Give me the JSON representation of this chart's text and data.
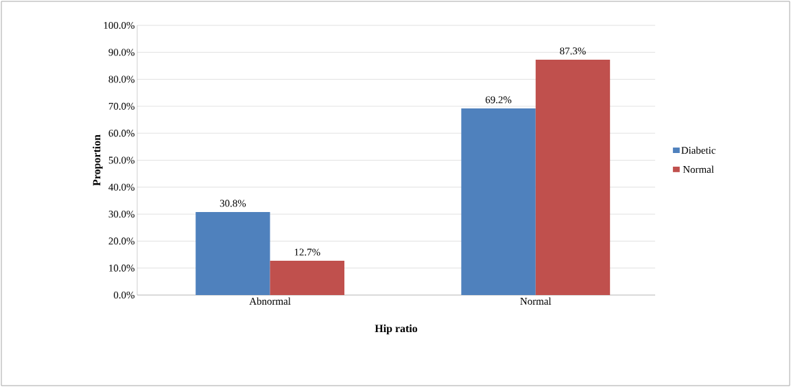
{
  "chart_data": {
    "type": "bar",
    "xlabel": "Hip ratio",
    "ylabel": "Proportion",
    "categories": [
      "Abnormal",
      "Normal"
    ],
    "series": [
      {
        "name": "Diabetic",
        "color": "#4f81bd",
        "values": [
          30.8,
          69.2
        ],
        "value_labels": [
          "30.8%",
          "69.2%"
        ]
      },
      {
        "name": "Normal",
        "color": "#c0504d",
        "values": [
          12.7,
          87.3
        ],
        "value_labels": [
          "12.7%",
          "87.3%"
        ]
      }
    ],
    "ylim": [
      0,
      100
    ],
    "yticks": [
      {
        "value": 0,
        "label": "0.0%"
      },
      {
        "value": 10,
        "label": "10.0%"
      },
      {
        "value": 20,
        "label": "20.0%"
      },
      {
        "value": 30,
        "label": "30.0%"
      },
      {
        "value": 40,
        "label": "40.0%"
      },
      {
        "value": 50,
        "label": "50.0%"
      },
      {
        "value": 60,
        "label": "60.0%"
      },
      {
        "value": 70,
        "label": "70.0%"
      },
      {
        "value": 80,
        "label": "80.0%"
      },
      {
        "value": 90,
        "label": "90.0%"
      },
      {
        "value": 100,
        "label": "100.0%"
      }
    ],
    "grid": "y",
    "legend": "right"
  }
}
